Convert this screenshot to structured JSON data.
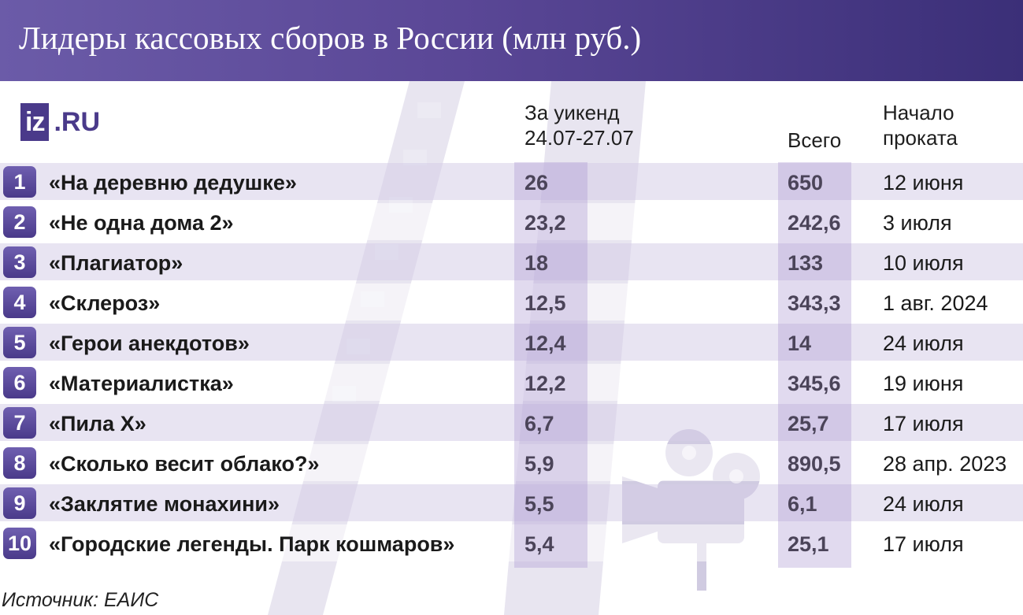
{
  "header": {
    "title": "Лидеры кассовых сборов в России (млн руб.)"
  },
  "logo": {
    "part1": "iz",
    "part2": ".RU"
  },
  "columns": {
    "weekend_line1": "За уикенд",
    "weekend_line2": "24.07-27.07",
    "total": "Всего",
    "start_line1": "Начало",
    "start_line2": "проката"
  },
  "chart_data": {
    "type": "table",
    "title": "Лидеры кассовых сборов в России (млн руб.)",
    "columns": [
      "",
      "",
      "За уикенд 24.07-27.07",
      "Всего",
      "Начало проката"
    ],
    "rows": [
      {
        "rank": "1",
        "title": "«На деревню дедушке»",
        "weekend": "26",
        "total": "650",
        "start": "12 июня"
      },
      {
        "rank": "2",
        "title": "«Не одна дома 2»",
        "weekend": "23,2",
        "total": "242,6",
        "start": "3 июля"
      },
      {
        "rank": "3",
        "title": "«Плагиатор»",
        "weekend": "18",
        "total": "133",
        "start": "10 июля"
      },
      {
        "rank": "4",
        "title": "«Склероз»",
        "weekend": "12,5",
        "total": "343,3",
        "start": "1 авг. 2024"
      },
      {
        "rank": "5",
        "title": "«Герои анекдотов»",
        "weekend": "12,4",
        "total": "14",
        "start": "24 июля"
      },
      {
        "rank": "6",
        "title": "«Материалистка»",
        "weekend": "12,2",
        "total": "345,6",
        "start": "19 июня"
      },
      {
        "rank": "7",
        "title": "«Пила X»",
        "weekend": "6,7",
        "total": "25,7",
        "start": "17 июля"
      },
      {
        "rank": "8",
        "title": "«Сколько весит облако?»",
        "weekend": "5,9",
        "total": "890,5",
        "start": "28 апр. 2023"
      },
      {
        "rank": "9",
        "title": "«Заклятие монахини»",
        "weekend": "5,5",
        "total": "6,1",
        "start": "24 июля"
      },
      {
        "rank": "10",
        "title": "«Городские легенды. Парк кошмаров»",
        "weekend": "5,4",
        "total": "25,1",
        "start": "17 июля"
      }
    ]
  },
  "source": "Источник: ЕАИС",
  "colors": {
    "accent": "#4a3a8a",
    "header_start": "#6b5ba8",
    "header_end": "#3b2f78",
    "row_shade": "#d6cde8"
  },
  "icons": {
    "background": "film-strip-icon",
    "camera": "film-camera-icon"
  }
}
